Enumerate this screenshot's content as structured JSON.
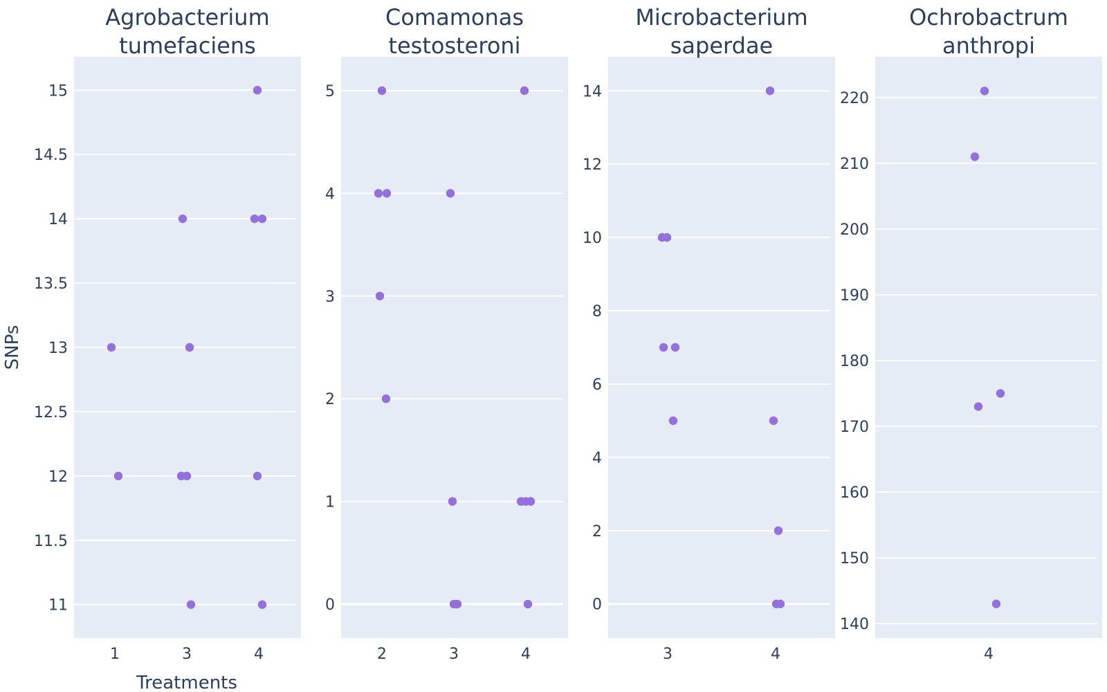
{
  "chart_data": {
    "type": "scatter",
    "x_label": "Treatments",
    "y_label": "SNPs",
    "marker_color": "#9370db",
    "plot_bg": "#e5ecf6",
    "grid": "horizontal",
    "panels": [
      {
        "title_lines": [
          "Agrobacterium",
          "tumefaciens"
        ],
        "x_categories": [
          "1",
          "3",
          "4"
        ],
        "y_ticks": [
          "11",
          "11.5",
          "12",
          "12.5",
          "13",
          "13.5",
          "14",
          "14.5",
          "15"
        ],
        "y_range": [
          10.74,
          15.26
        ],
        "points": [
          {
            "x": "1",
            "y": 13
          },
          {
            "x": "1",
            "y": 12
          },
          {
            "x": "3",
            "y": 14
          },
          {
            "x": "3",
            "y": 13
          },
          {
            "x": "3",
            "y": 12
          },
          {
            "x": "3",
            "y": 12
          },
          {
            "x": "3",
            "y": 11
          },
          {
            "x": "4",
            "y": 15
          },
          {
            "x": "4",
            "y": 14
          },
          {
            "x": "4",
            "y": 14
          },
          {
            "x": "4",
            "y": 12
          },
          {
            "x": "4",
            "y": 11
          }
        ]
      },
      {
        "title_lines": [
          "Comamonas",
          "testosteroni"
        ],
        "x_categories": [
          "2",
          "3",
          "4"
        ],
        "y_ticks": [
          "0",
          "1",
          "2",
          "3",
          "4",
          "5"
        ],
        "y_range": [
          -0.33,
          5.33
        ],
        "points": [
          {
            "x": "2",
            "y": 5
          },
          {
            "x": "2",
            "y": 4
          },
          {
            "x": "2",
            "y": 4
          },
          {
            "x": "2",
            "y": 3
          },
          {
            "x": "2",
            "y": 2
          },
          {
            "x": "3",
            "y": 4
          },
          {
            "x": "3",
            "y": 1
          },
          {
            "x": "3",
            "y": 0
          },
          {
            "x": "3",
            "y": 0
          },
          {
            "x": "3",
            "y": 0
          },
          {
            "x": "4",
            "y": 5
          },
          {
            "x": "4",
            "y": 1
          },
          {
            "x": "4",
            "y": 1
          },
          {
            "x": "4",
            "y": 1
          },
          {
            "x": "4",
            "y": 0
          }
        ]
      },
      {
        "title_lines": [
          "Microbacterium",
          "saperdae"
        ],
        "x_categories": [
          "3",
          "4"
        ],
        "y_ticks": [
          "0",
          "2",
          "4",
          "6",
          "8",
          "10",
          "12",
          "14"
        ],
        "y_range": [
          -0.93,
          14.93
        ],
        "points": [
          {
            "x": "3",
            "y": 10
          },
          {
            "x": "3",
            "y": 10
          },
          {
            "x": "3",
            "y": 7
          },
          {
            "x": "3",
            "y": 7
          },
          {
            "x": "3",
            "y": 5
          },
          {
            "x": "4",
            "y": 14
          },
          {
            "x": "4",
            "y": 5
          },
          {
            "x": "4",
            "y": 2
          },
          {
            "x": "4",
            "y": 0
          },
          {
            "x": "4",
            "y": 0
          }
        ]
      },
      {
        "title_lines": [
          "Ochrobactrum",
          "anthropi"
        ],
        "x_categories": [
          "4"
        ],
        "y_ticks": [
          "140",
          "150",
          "160",
          "170",
          "180",
          "190",
          "200",
          "210",
          "220"
        ],
        "y_range": [
          137.8,
          226.2
        ],
        "points": [
          {
            "x": "4",
            "y": 221
          },
          {
            "x": "4",
            "y": 211
          },
          {
            "x": "4",
            "y": 175
          },
          {
            "x": "4",
            "y": 173
          },
          {
            "x": "4",
            "y": 143
          }
        ]
      }
    ]
  }
}
